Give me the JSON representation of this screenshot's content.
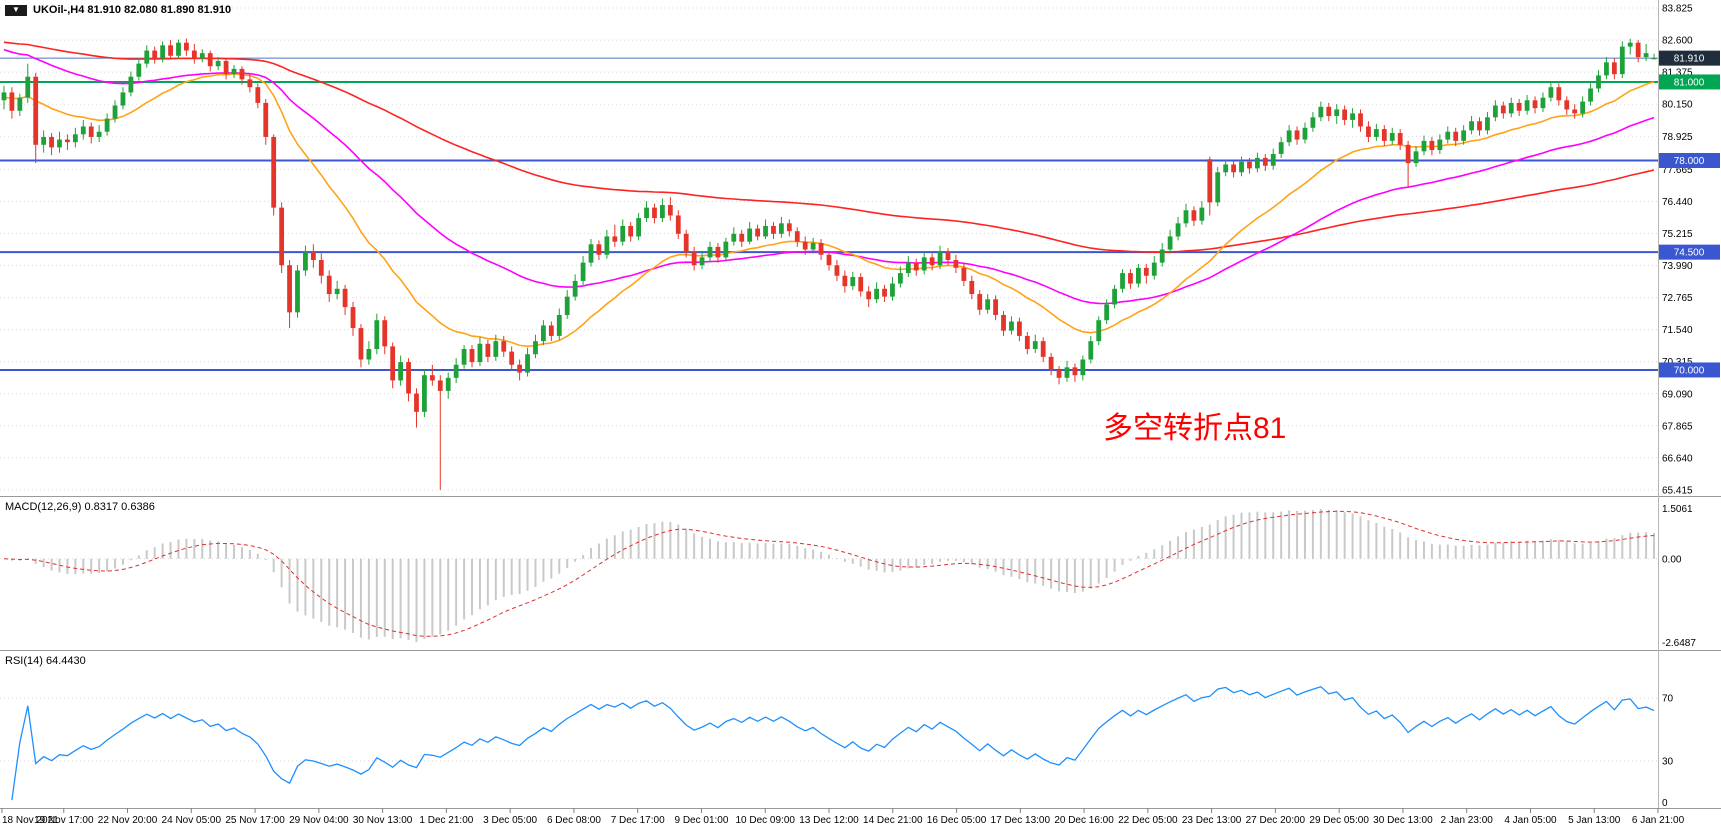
{
  "title": {
    "text": "UKOil-,H4 81.910 82.080 81.890 81.910"
  },
  "indicators": {
    "macd_label": "MACD(12,26,9) 0.8317 0.6386",
    "rsi_label": "RSI(14) 64.4430"
  },
  "annotation": {
    "text": "多空转折点81",
    "color": "#ff0000"
  },
  "chart_data": {
    "type": "candlestick",
    "symbol": "UKOil-",
    "timeframe": "H4",
    "current_bar": {
      "open": "81.910",
      "high": "82.080",
      "low": "81.890",
      "close": "81.910"
    },
    "price_axis": {
      "min": 65.415,
      "max": 83.825,
      "ticks": [
        "83.825",
        "82.600",
        "81.375",
        "80.150",
        "78.925",
        "77.665",
        "76.440",
        "75.215",
        "73.990",
        "72.765",
        "71.540",
        "70.315",
        "69.090",
        "67.865",
        "66.640",
        "65.415"
      ]
    },
    "current_price_line": {
      "value": 81.91,
      "label": "81.910"
    },
    "hlines": [
      {
        "value": 81.0,
        "label": "81.000",
        "color": "#00a651"
      },
      {
        "value": 78.0,
        "label": "78.000",
        "color": "#3a57d0"
      },
      {
        "value": 74.5,
        "label": "74.500",
        "color": "#3a57d0"
      },
      {
        "value": 70.0,
        "label": "70.000",
        "color": "#3a57d0"
      }
    ],
    "time_axis": [
      "18 Nov 2021",
      "19 Nov 17:00",
      "22 Nov 20:00",
      "24 Nov 05:00",
      "25 Nov 17:00",
      "29 Nov 04:00",
      "30 Nov 13:00",
      "1 Dec 21:00",
      "3 Dec 05:00",
      "6 Dec 08:00",
      "7 Dec 17:00",
      "9 Dec 01:00",
      "10 Dec 09:00",
      "13 Dec 12:00",
      "14 Dec 21:00",
      "16 Dec 05:00",
      "17 Dec 13:00",
      "20 Dec 16:00",
      "22 Dec 05:00",
      "23 Dec 13:00",
      "27 Dec 20:00",
      "29 Dec 05:00",
      "30 Dec 13:00",
      "2 Jan 23:00",
      "4 Jan 05:00",
      "5 Jan 13:00",
      "6 Jan 21:00"
    ],
    "moving_averages": [
      {
        "name": "ma-slow-red",
        "period": 130,
        "seed": 82.55,
        "color": "#ff2222"
      },
      {
        "name": "ma-mid-magenta",
        "period": 48,
        "seed": 82.3,
        "color": "#ff00ff"
      },
      {
        "name": "ma-fast-orange",
        "period": 20,
        "seed": 80.4,
        "color": "#ffa319"
      }
    ],
    "macd": {
      "fast": 12,
      "slow": 26,
      "signal": 9,
      "value": 0.8317,
      "signal_value": 0.6386,
      "axis_labels": [
        "1.5061",
        "0.00",
        "-2.6487"
      ]
    },
    "rsi": {
      "period": 14,
      "value": 64.443,
      "levels": [
        70,
        30
      ],
      "axis_labels": [
        "70",
        "30",
        "0"
      ]
    },
    "colors": {
      "up": "#1fa13a",
      "down": "#e5352b",
      "macd_hist": "#c9c9c9",
      "macd_signal": "#e03030",
      "rsi_line": "#1e90ff",
      "grid": "#d9d9d9",
      "separator": "#9a9a9a",
      "current_line": "#4f76c0",
      "current_badge": "#1f2d3d"
    },
    "candles": [
      [
        80.3,
        80.85,
        79.95,
        80.6
      ],
      [
        80.6,
        80.8,
        79.6,
        79.9
      ],
      [
        79.9,
        80.55,
        79.7,
        80.4
      ],
      [
        80.4,
        81.7,
        80.2,
        81.2
      ],
      [
        81.2,
        81.35,
        77.9,
        78.6
      ],
      [
        78.6,
        79.15,
        78.3,
        78.9
      ],
      [
        78.9,
        79.05,
        78.2,
        78.5
      ],
      [
        78.5,
        79.1,
        78.3,
        78.8
      ],
      [
        78.8,
        79.0,
        78.4,
        78.7
      ],
      [
        78.7,
        79.25,
        78.5,
        79.0
      ],
      [
        79.0,
        79.55,
        78.8,
        79.3
      ],
      [
        79.3,
        79.45,
        78.65,
        78.9
      ],
      [
        78.9,
        79.35,
        78.7,
        79.1
      ],
      [
        79.1,
        79.8,
        78.95,
        79.6
      ],
      [
        79.6,
        80.3,
        79.45,
        80.1
      ],
      [
        80.1,
        80.8,
        79.95,
        80.6
      ],
      [
        80.6,
        81.4,
        80.45,
        81.2
      ],
      [
        81.2,
        81.9,
        81.05,
        81.7
      ],
      [
        81.7,
        82.4,
        81.55,
        82.2
      ],
      [
        82.2,
        82.35,
        81.7,
        81.9
      ],
      [
        81.9,
        82.55,
        81.75,
        82.4
      ],
      [
        82.4,
        82.6,
        81.85,
        82.0
      ],
      [
        82.0,
        82.62,
        81.9,
        82.5
      ],
      [
        82.5,
        82.66,
        82.0,
        82.2
      ],
      [
        82.2,
        82.45,
        81.7,
        81.9
      ],
      [
        81.9,
        82.25,
        81.75,
        82.1
      ],
      [
        82.1,
        82.2,
        81.4,
        81.6
      ],
      [
        81.6,
        81.95,
        81.45,
        81.8
      ],
      [
        81.8,
        81.9,
        81.1,
        81.3
      ],
      [
        81.3,
        81.65,
        81.15,
        81.5
      ],
      [
        81.5,
        81.6,
        80.9,
        81.1
      ],
      [
        81.1,
        81.3,
        80.6,
        80.8
      ],
      [
        80.8,
        80.95,
        80.0,
        80.2
      ],
      [
        80.2,
        80.35,
        78.6,
        78.9
      ],
      [
        78.9,
        79.0,
        75.9,
        76.2
      ],
      [
        76.2,
        76.4,
        73.7,
        74.0
      ],
      [
        74.0,
        74.2,
        71.6,
        72.2
      ],
      [
        72.2,
        74.0,
        72.0,
        73.8
      ],
      [
        73.8,
        74.75,
        73.6,
        74.5
      ],
      [
        74.5,
        74.8,
        73.9,
        74.2
      ],
      [
        74.2,
        74.45,
        73.3,
        73.6
      ],
      [
        73.6,
        73.8,
        72.6,
        72.9
      ],
      [
        72.9,
        73.4,
        72.7,
        73.1
      ],
      [
        73.1,
        73.25,
        72.1,
        72.4
      ],
      [
        72.4,
        72.6,
        71.3,
        71.6
      ],
      [
        71.6,
        71.75,
        70.1,
        70.4
      ],
      [
        70.4,
        71.1,
        70.2,
        70.8
      ],
      [
        70.8,
        72.15,
        70.6,
        71.9
      ],
      [
        71.9,
        72.05,
        70.6,
        70.9
      ],
      [
        70.9,
        71.05,
        69.3,
        69.6
      ],
      [
        69.6,
        70.55,
        69.4,
        70.3
      ],
      [
        70.3,
        70.45,
        68.8,
        69.1
      ],
      [
        69.1,
        69.3,
        67.8,
        68.4
      ],
      [
        68.4,
        70.0,
        68.2,
        69.8
      ],
      [
        69.8,
        70.2,
        69.4,
        69.6
      ],
      [
        69.6,
        69.8,
        65.42,
        69.2
      ],
      [
        69.2,
        69.9,
        68.9,
        69.7
      ],
      [
        69.7,
        70.45,
        69.5,
        70.2
      ],
      [
        70.2,
        70.95,
        70.05,
        70.8
      ],
      [
        70.8,
        70.95,
        70.1,
        70.3
      ],
      [
        70.3,
        71.25,
        70.15,
        71.0
      ],
      [
        71.0,
        71.15,
        70.3,
        70.5
      ],
      [
        70.5,
        71.35,
        70.35,
        71.1
      ],
      [
        71.1,
        71.3,
        70.5,
        70.7
      ],
      [
        70.7,
        70.9,
        70.0,
        70.2
      ],
      [
        70.2,
        70.4,
        69.6,
        69.9
      ],
      [
        69.9,
        70.85,
        69.75,
        70.6
      ],
      [
        70.6,
        71.35,
        70.45,
        71.1
      ],
      [
        71.1,
        71.9,
        70.95,
        71.7
      ],
      [
        71.7,
        71.85,
        71.1,
        71.3
      ],
      [
        71.3,
        72.35,
        71.15,
        72.1
      ],
      [
        72.1,
        73.05,
        71.95,
        72.8
      ],
      [
        72.8,
        73.65,
        72.65,
        73.4
      ],
      [
        73.4,
        74.35,
        73.25,
        74.1
      ],
      [
        74.1,
        75.0,
        73.95,
        74.8
      ],
      [
        74.8,
        74.95,
        74.2,
        74.4
      ],
      [
        74.4,
        75.35,
        74.25,
        75.1
      ],
      [
        75.1,
        75.55,
        74.7,
        74.9
      ],
      [
        74.9,
        75.75,
        74.75,
        75.5
      ],
      [
        75.5,
        75.65,
        74.9,
        75.1
      ],
      [
        75.1,
        76.0,
        74.95,
        75.8
      ],
      [
        75.8,
        76.45,
        75.65,
        76.2
      ],
      [
        76.2,
        76.35,
        75.6,
        75.8
      ],
      [
        75.8,
        76.55,
        75.65,
        76.3
      ],
      [
        76.3,
        76.6,
        75.7,
        75.9
      ],
      [
        75.9,
        76.1,
        75.0,
        75.2
      ],
      [
        75.2,
        75.35,
        74.3,
        74.5
      ],
      [
        74.5,
        74.7,
        73.8,
        74.0
      ],
      [
        74.0,
        74.55,
        73.85,
        74.3
      ],
      [
        74.3,
        74.9,
        74.1,
        74.7
      ],
      [
        74.7,
        74.85,
        74.1,
        74.3
      ],
      [
        74.3,
        75.05,
        74.15,
        74.9
      ],
      [
        74.9,
        75.45,
        74.75,
        75.2
      ],
      [
        75.2,
        75.35,
        74.7,
        74.9
      ],
      [
        74.9,
        75.65,
        74.8,
        75.4
      ],
      [
        75.4,
        75.55,
        74.95,
        75.1
      ],
      [
        75.1,
        75.75,
        75.0,
        75.5
      ],
      [
        75.5,
        75.65,
        75.0,
        75.2
      ],
      [
        75.2,
        75.85,
        75.05,
        75.6
      ],
      [
        75.6,
        75.75,
        75.1,
        75.3
      ],
      [
        75.3,
        75.45,
        74.7,
        74.9
      ],
      [
        74.9,
        75.1,
        74.4,
        74.6
      ],
      [
        74.6,
        75.05,
        74.45,
        74.85
      ],
      [
        74.85,
        75.0,
        74.2,
        74.4
      ],
      [
        74.4,
        74.55,
        73.8,
        74.0
      ],
      [
        74.0,
        74.2,
        73.4,
        73.6
      ],
      [
        73.6,
        73.8,
        72.95,
        73.2
      ],
      [
        73.2,
        73.75,
        73.05,
        73.55
      ],
      [
        73.55,
        73.7,
        72.8,
        73.0
      ],
      [
        73.0,
        73.2,
        72.4,
        72.7
      ],
      [
        72.7,
        73.35,
        72.55,
        73.1
      ],
      [
        73.1,
        73.25,
        72.6,
        72.8
      ],
      [
        72.8,
        73.55,
        72.65,
        73.3
      ],
      [
        73.3,
        73.95,
        73.15,
        73.7
      ],
      [
        73.7,
        74.35,
        73.55,
        74.1
      ],
      [
        74.1,
        74.25,
        73.6,
        73.8
      ],
      [
        73.8,
        74.55,
        73.65,
        74.3
      ],
      [
        74.3,
        74.45,
        73.8,
        74.0
      ],
      [
        74.0,
        74.75,
        73.85,
        74.5
      ],
      [
        74.5,
        74.65,
        74.0,
        74.2
      ],
      [
        74.2,
        74.4,
        73.7,
        73.9
      ],
      [
        73.9,
        74.05,
        73.2,
        73.4
      ],
      [
        73.4,
        73.6,
        72.7,
        72.9
      ],
      [
        72.9,
        73.05,
        72.1,
        72.3
      ],
      [
        72.3,
        72.9,
        72.15,
        72.7
      ],
      [
        72.7,
        72.85,
        71.9,
        72.1
      ],
      [
        72.1,
        72.25,
        71.3,
        71.5
      ],
      [
        71.5,
        72.05,
        71.35,
        71.85
      ],
      [
        71.85,
        72.0,
        71.1,
        71.3
      ],
      [
        71.3,
        71.45,
        70.6,
        70.8
      ],
      [
        70.8,
        71.35,
        70.65,
        71.1
      ],
      [
        71.1,
        71.25,
        70.3,
        70.5
      ],
      [
        70.5,
        70.65,
        69.8,
        70.0
      ],
      [
        70.0,
        70.15,
        69.45,
        69.7
      ],
      [
        69.7,
        70.35,
        69.55,
        70.1
      ],
      [
        70.1,
        70.25,
        69.55,
        69.8
      ],
      [
        69.8,
        70.55,
        69.6,
        70.4
      ],
      [
        70.4,
        71.3,
        70.25,
        71.1
      ],
      [
        71.1,
        72.05,
        70.95,
        71.9
      ],
      [
        71.9,
        72.7,
        71.75,
        72.5
      ],
      [
        72.5,
        73.25,
        72.35,
        73.1
      ],
      [
        73.1,
        73.85,
        72.95,
        73.7
      ],
      [
        73.7,
        73.85,
        73.1,
        73.3
      ],
      [
        73.3,
        74.05,
        73.15,
        73.9
      ],
      [
        73.9,
        74.05,
        73.3,
        73.6
      ],
      [
        73.6,
        74.35,
        73.45,
        74.1
      ],
      [
        74.1,
        74.85,
        73.95,
        74.6
      ],
      [
        74.6,
        75.35,
        74.45,
        75.1
      ],
      [
        75.1,
        75.85,
        74.95,
        75.6
      ],
      [
        75.6,
        76.35,
        75.45,
        76.1
      ],
      [
        76.1,
        76.25,
        75.5,
        75.7
      ],
      [
        75.7,
        76.45,
        75.55,
        76.2
      ],
      [
        78.05,
        78.15,
        75.9,
        76.4
      ],
      [
        76.4,
        77.75,
        76.25,
        77.55
      ],
      [
        77.55,
        78.0,
        77.4,
        77.85
      ],
      [
        77.85,
        78.0,
        77.35,
        77.55
      ],
      [
        77.55,
        78.15,
        77.4,
        77.95
      ],
      [
        77.95,
        78.1,
        77.5,
        77.7
      ],
      [
        77.7,
        78.3,
        77.55,
        78.1
      ],
      [
        78.1,
        78.25,
        77.6,
        77.8
      ],
      [
        77.8,
        78.45,
        77.65,
        78.25
      ],
      [
        78.25,
        78.9,
        78.1,
        78.7
      ],
      [
        78.7,
        79.35,
        78.55,
        79.15
      ],
      [
        79.15,
        79.3,
        78.6,
        78.8
      ],
      [
        78.8,
        79.45,
        78.65,
        79.25
      ],
      [
        79.25,
        79.85,
        79.1,
        79.65
      ],
      [
        79.65,
        80.25,
        79.5,
        80.05
      ],
      [
        80.05,
        80.2,
        79.5,
        79.7
      ],
      [
        79.7,
        80.15,
        79.4,
        79.95
      ],
      [
        79.95,
        80.1,
        79.35,
        79.55
      ],
      [
        79.55,
        80.0,
        79.25,
        79.8
      ],
      [
        79.8,
        79.95,
        79.1,
        79.3
      ],
      [
        79.3,
        79.5,
        78.7,
        78.9
      ],
      [
        78.9,
        79.4,
        78.75,
        79.2
      ],
      [
        79.2,
        79.35,
        78.55,
        78.75
      ],
      [
        78.75,
        79.25,
        78.6,
        79.05
      ],
      [
        79.05,
        79.2,
        78.4,
        78.6
      ],
      [
        78.6,
        78.75,
        77.0,
        77.9
      ],
      [
        77.9,
        78.55,
        77.75,
        78.35
      ],
      [
        78.35,
        78.95,
        78.2,
        78.75
      ],
      [
        78.75,
        78.9,
        78.2,
        78.4
      ],
      [
        78.4,
        79.0,
        78.25,
        78.8
      ],
      [
        78.8,
        79.3,
        78.65,
        79.1
      ],
      [
        79.1,
        79.25,
        78.55,
        78.75
      ],
      [
        78.75,
        79.35,
        78.6,
        79.15
      ],
      [
        79.15,
        79.7,
        79.0,
        79.5
      ],
      [
        79.5,
        79.65,
        78.95,
        79.15
      ],
      [
        79.15,
        79.85,
        79.0,
        79.65
      ],
      [
        79.65,
        80.3,
        79.5,
        80.1
      ],
      [
        80.1,
        80.25,
        79.6,
        79.8
      ],
      [
        79.8,
        80.4,
        79.65,
        80.2
      ],
      [
        80.2,
        80.35,
        79.7,
        79.9
      ],
      [
        79.9,
        80.5,
        79.75,
        80.3
      ],
      [
        80.3,
        80.45,
        79.8,
        80.0
      ],
      [
        80.0,
        80.6,
        79.85,
        80.4
      ],
      [
        80.4,
        81.0,
        80.25,
        80.8
      ],
      [
        80.8,
        80.95,
        80.1,
        80.3
      ],
      [
        80.3,
        80.45,
        79.75,
        79.95
      ],
      [
        79.95,
        80.15,
        79.6,
        79.8
      ],
      [
        79.8,
        80.45,
        79.65,
        80.25
      ],
      [
        80.25,
        80.95,
        80.1,
        80.75
      ],
      [
        80.75,
        81.45,
        80.6,
        81.25
      ],
      [
        81.25,
        81.95,
        81.1,
        81.75
      ],
      [
        81.75,
        81.9,
        81.1,
        81.3
      ],
      [
        81.3,
        82.55,
        81.15,
        82.35
      ],
      [
        82.35,
        82.65,
        82.05,
        82.5
      ],
      [
        82.5,
        82.6,
        81.75,
        81.95
      ],
      [
        81.95,
        82.45,
        81.8,
        82.1
      ],
      [
        81.91,
        82.08,
        81.89,
        81.91
      ]
    ]
  }
}
